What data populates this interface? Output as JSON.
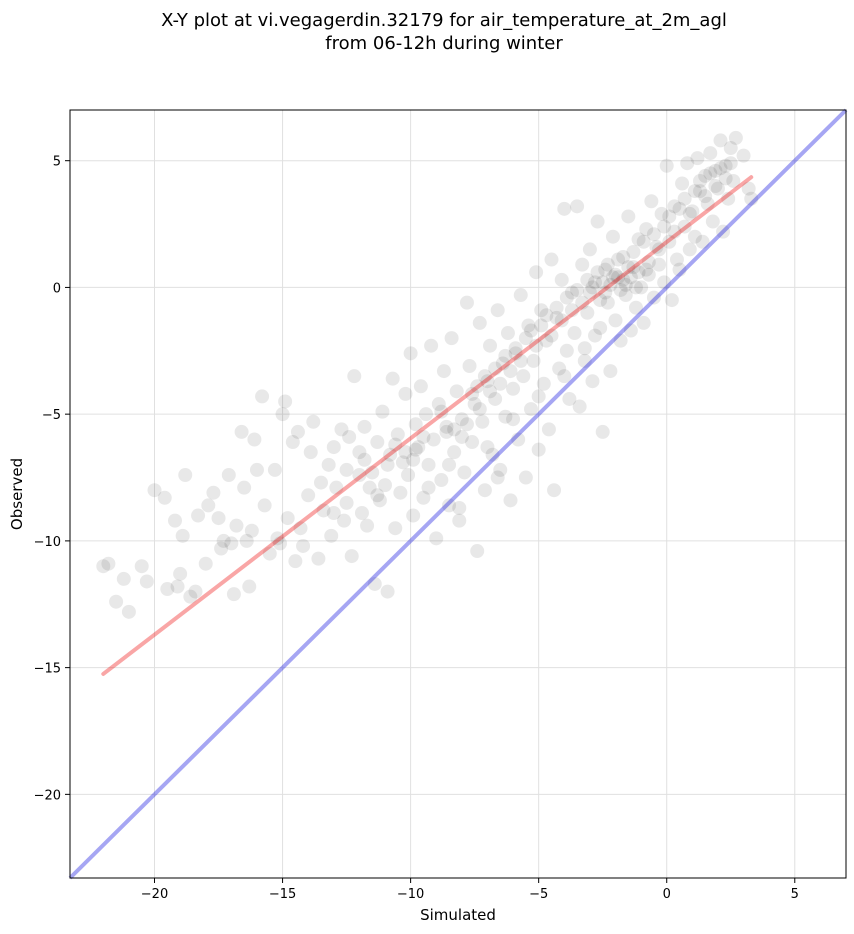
{
  "chart_data": {
    "type": "scatter",
    "title_lines": [
      "X-Y plot at vi.vegagerdin.32179 for air_temperature_at_2m_agl",
      "from 06-12h during winter"
    ],
    "xlabel": "Simulated",
    "ylabel": "Observed",
    "xlim": [
      -23.3,
      7.0
    ],
    "ylim": [
      -23.3,
      7.0
    ],
    "xticks": [
      -20,
      -15,
      -10,
      -5,
      0,
      5
    ],
    "yticks": [
      -20,
      -15,
      -10,
      -5,
      0,
      5
    ],
    "xtick_labels": [
      "−20",
      "−15",
      "−10",
      "−5",
      "0",
      "5"
    ],
    "ytick_labels": [
      "−20",
      "−15",
      "−10",
      "−5",
      "0",
      "5"
    ],
    "grid": true,
    "reference_line": {
      "color": "#0000dd",
      "x": [
        -23.3,
        7.0
      ],
      "y": [
        -23.3,
        7.0
      ]
    },
    "fit_line": {
      "color": "#ee0000",
      "x": [
        -22.0,
        3.3
      ],
      "y": [
        -15.25,
        4.35
      ]
    },
    "point_color": "#000000",
    "points": [
      [
        -22.0,
        -11.0
      ],
      [
        -21.8,
        -10.9
      ],
      [
        -21.5,
        -12.4
      ],
      [
        -21.2,
        -11.5
      ],
      [
        -21.0,
        -12.8
      ],
      [
        -20.5,
        -11.0
      ],
      [
        -20.3,
        -11.6
      ],
      [
        -20.0,
        -8.0
      ],
      [
        -19.6,
        -8.3
      ],
      [
        -19.5,
        -11.9
      ],
      [
        -19.2,
        -9.2
      ],
      [
        -19.1,
        -11.8
      ],
      [
        -18.9,
        -9.8
      ],
      [
        -18.8,
        -7.4
      ],
      [
        -18.6,
        -12.2
      ],
      [
        -18.4,
        -12.0
      ],
      [
        -18.3,
        -9.0
      ],
      [
        -17.9,
        -8.6
      ],
      [
        -17.7,
        -8.1
      ],
      [
        -17.5,
        -9.1
      ],
      [
        -17.4,
        -10.3
      ],
      [
        -17.3,
        -10.0
      ],
      [
        -17.1,
        -7.4
      ],
      [
        -16.9,
        -12.1
      ],
      [
        -16.8,
        -9.4
      ],
      [
        -16.6,
        -5.7
      ],
      [
        -16.5,
        -7.9
      ],
      [
        -16.4,
        -10.0
      ],
      [
        -16.3,
        -11.8
      ],
      [
        -16.1,
        -6.0
      ],
      [
        -16.0,
        -7.2
      ],
      [
        -15.8,
        -4.3
      ],
      [
        -15.7,
        -8.6
      ],
      [
        -15.5,
        -10.5
      ],
      [
        -15.3,
        -7.2
      ],
      [
        -15.1,
        -10.1
      ],
      [
        -15.0,
        -5.0
      ],
      [
        -14.9,
        -4.5
      ],
      [
        -14.8,
        -9.1
      ],
      [
        -14.6,
        -6.1
      ],
      [
        -14.5,
        -10.8
      ],
      [
        -14.4,
        -5.7
      ],
      [
        -14.2,
        -10.2
      ],
      [
        -14.0,
        -8.2
      ],
      [
        -13.9,
        -6.5
      ],
      [
        -13.8,
        -5.3
      ],
      [
        -13.6,
        -10.7
      ],
      [
        -13.4,
        -8.8
      ],
      [
        -13.2,
        -7.0
      ],
      [
        -13.1,
        -9.8
      ],
      [
        -13.0,
        -6.3
      ],
      [
        -12.9,
        -7.9
      ],
      [
        -12.7,
        -5.6
      ],
      [
        -12.6,
        -9.2
      ],
      [
        -12.5,
        -7.2
      ],
      [
        -12.4,
        -5.9
      ],
      [
        -12.3,
        -10.6
      ],
      [
        -12.2,
        -3.5
      ],
      [
        -12.0,
        -6.5
      ],
      [
        -11.9,
        -8.9
      ],
      [
        -11.8,
        -5.5
      ],
      [
        -11.7,
        -9.4
      ],
      [
        -11.5,
        -7.3
      ],
      [
        -11.4,
        -11.7
      ],
      [
        -11.3,
        -6.1
      ],
      [
        -11.2,
        -8.4
      ],
      [
        -11.1,
        -4.9
      ],
      [
        -11.0,
        -7.8
      ],
      [
        -10.9,
        -12.0
      ],
      [
        -10.8,
        -6.6
      ],
      [
        -10.7,
        -3.6
      ],
      [
        -10.6,
        -9.5
      ],
      [
        -10.5,
        -5.8
      ],
      [
        -10.4,
        -8.1
      ],
      [
        -10.3,
        -6.9
      ],
      [
        -10.2,
        -4.2
      ],
      [
        -10.1,
        -7.4
      ],
      [
        -10.0,
        -2.6
      ],
      [
        -9.9,
        -9.0
      ],
      [
        -9.8,
        -5.4
      ],
      [
        -9.7,
        -6.3
      ],
      [
        -9.6,
        -3.9
      ],
      [
        -9.5,
        -8.3
      ],
      [
        -9.4,
        -5.0
      ],
      [
        -9.3,
        -7.0
      ],
      [
        -9.2,
        -2.3
      ],
      [
        -9.1,
        -6.0
      ],
      [
        -9.0,
        -9.9
      ],
      [
        -8.9,
        -4.6
      ],
      [
        -8.8,
        -7.6
      ],
      [
        -8.7,
        -3.3
      ],
      [
        -8.6,
        -5.7
      ],
      [
        -8.5,
        -8.6
      ],
      [
        -8.4,
        -2.0
      ],
      [
        -8.3,
        -6.5
      ],
      [
        -8.2,
        -4.1
      ],
      [
        -8.1,
        -9.2
      ],
      [
        -8.0,
        -5.2
      ],
      [
        -7.9,
        -7.3
      ],
      [
        -7.8,
        -0.6
      ],
      [
        -7.7,
        -3.1
      ],
      [
        -7.6,
        -6.1
      ],
      [
        -7.5,
        -4.6
      ],
      [
        -7.4,
        -10.4
      ],
      [
        -7.3,
        -1.4
      ],
      [
        -7.2,
        -5.3
      ],
      [
        -7.1,
        -8.0
      ],
      [
        -7.0,
        -3.7
      ],
      [
        -6.9,
        -2.3
      ],
      [
        -6.8,
        -6.6
      ],
      [
        -6.7,
        -4.4
      ],
      [
        -6.6,
        -0.9
      ],
      [
        -6.5,
        -7.2
      ],
      [
        -6.4,
        -3.0
      ],
      [
        -6.3,
        -5.1
      ],
      [
        -6.2,
        -1.8
      ],
      [
        -6.1,
        -8.4
      ],
      [
        -6.0,
        -4.0
      ],
      [
        -5.9,
        -2.6
      ],
      [
        -5.8,
        -6.0
      ],
      [
        -5.7,
        -0.3
      ],
      [
        -5.6,
        -3.5
      ],
      [
        -5.5,
        -7.5
      ],
      [
        -5.4,
        -1.5
      ],
      [
        -5.3,
        -4.8
      ],
      [
        -5.2,
        -2.9
      ],
      [
        -5.1,
        0.6
      ],
      [
        -5.0,
        -6.4
      ],
      [
        -4.9,
        -0.9
      ],
      [
        -4.8,
        -3.8
      ],
      [
        -4.7,
        -2.1
      ],
      [
        -4.6,
        -5.6
      ],
      [
        -4.5,
        1.1
      ],
      [
        -4.4,
        -8.0
      ],
      [
        -4.3,
        -1.2
      ],
      [
        -4.2,
        -3.2
      ],
      [
        -4.1,
        0.3
      ],
      [
        -4.0,
        3.1
      ],
      [
        -3.9,
        -2.5
      ],
      [
        -3.8,
        -4.4
      ],
      [
        -3.7,
        -0.2
      ],
      [
        -3.6,
        -1.8
      ],
      [
        -3.5,
        3.2
      ],
      [
        -3.4,
        -4.7
      ],
      [
        -3.3,
        0.9
      ],
      [
        -3.2,
        -2.9
      ],
      [
        -3.1,
        -1.0
      ],
      [
        -3.0,
        1.5
      ],
      [
        -2.9,
        -3.7
      ],
      [
        -2.8,
        0.2
      ],
      [
        -2.7,
        2.6
      ],
      [
        -2.6,
        -1.6
      ],
      [
        -2.5,
        -5.7
      ],
      [
        -2.4,
        0.7
      ],
      [
        -2.3,
        -0.6
      ],
      [
        -2.2,
        -3.3
      ],
      [
        -2.1,
        2.0
      ],
      [
        -2.0,
        -1.3
      ],
      [
        -1.9,
        0.4
      ],
      [
        -1.8,
        -2.1
      ],
      [
        -1.7,
        1.2
      ],
      [
        -1.6,
        -0.3
      ],
      [
        -1.5,
        2.8
      ],
      [
        -1.4,
        -1.7
      ],
      [
        -1.3,
        0.8
      ],
      [
        -1.2,
        -0.8
      ],
      [
        -1.1,
        1.9
      ],
      [
        -1.0,
        0.0
      ],
      [
        -0.9,
        -1.4
      ],
      [
        -0.8,
        2.3
      ],
      [
        -0.7,
        0.5
      ],
      [
        -0.6,
        3.4
      ],
      [
        -0.5,
        -0.4
      ],
      [
        -0.4,
        1.6
      ],
      [
        -0.3,
        0.9
      ],
      [
        -0.2,
        2.9
      ],
      [
        -0.1,
        0.2
      ],
      [
        0.0,
        4.8
      ],
      [
        0.1,
        1.8
      ],
      [
        0.2,
        -0.5
      ],
      [
        0.3,
        3.2
      ],
      [
        0.4,
        1.1
      ],
      [
        0.5,
        0.7
      ],
      [
        0.6,
        4.1
      ],
      [
        0.7,
        2.4
      ],
      [
        0.8,
        4.9
      ],
      [
        0.9,
        1.5
      ],
      [
        1.0,
        3.0
      ],
      [
        1.1,
        2.0
      ],
      [
        1.2,
        5.1
      ],
      [
        1.3,
        3.8
      ],
      [
        1.4,
        1.8
      ],
      [
        1.5,
        4.4
      ],
      [
        1.6,
        3.3
      ],
      [
        1.7,
        5.3
      ],
      [
        1.8,
        2.6
      ],
      [
        1.9,
        4.6
      ],
      [
        2.0,
        3.9
      ],
      [
        2.1,
        5.8
      ],
      [
        2.2,
        2.2
      ],
      [
        2.3,
        4.8
      ],
      [
        2.4,
        3.5
      ],
      [
        2.5,
        5.5
      ],
      [
        2.6,
        4.2
      ],
      [
        2.7,
        5.9
      ],
      [
        3.0,
        5.2
      ],
      [
        3.2,
        3.9
      ],
      [
        3.3,
        3.5
      ],
      [
        -10.6,
        -6.2
      ],
      [
        -10.2,
        -6.5
      ],
      [
        -9.8,
        -6.4
      ],
      [
        -9.5,
        -5.9
      ],
      [
        -9.9,
        -6.8
      ],
      [
        -8.8,
        -4.9
      ],
      [
        -8.6,
        -5.5
      ],
      [
        -8.3,
        -5.6
      ],
      [
        -8.0,
        -5.9
      ],
      [
        -7.8,
        -5.4
      ],
      [
        -7.6,
        -4.2
      ],
      [
        -7.4,
        -3.9
      ],
      [
        -7.3,
        -4.8
      ],
      [
        -7.1,
        -3.5
      ],
      [
        -6.9,
        -4.1
      ],
      [
        -6.7,
        -3.2
      ],
      [
        -6.5,
        -3.8
      ],
      [
        -6.3,
        -2.7
      ],
      [
        -6.1,
        -3.3
      ],
      [
        -5.9,
        -2.4
      ],
      [
        -5.7,
        -2.9
      ],
      [
        -5.5,
        -2.0
      ],
      [
        -5.3,
        -1.7
      ],
      [
        -5.1,
        -2.3
      ],
      [
        -4.9,
        -1.5
      ],
      [
        -4.7,
        -1.1
      ],
      [
        -4.5,
        -1.9
      ],
      [
        -4.3,
        -0.8
      ],
      [
        -4.1,
        -1.3
      ],
      [
        -3.9,
        -0.4
      ],
      [
        -3.7,
        -0.9
      ],
      [
        -3.5,
        -0.1
      ],
      [
        -3.3,
        -0.6
      ],
      [
        -3.1,
        0.3
      ],
      [
        -2.9,
        0.0
      ],
      [
        -2.7,
        0.6
      ],
      [
        -2.5,
        0.2
      ],
      [
        -2.3,
        0.9
      ],
      [
        -2.1,
        0.4
      ],
      [
        -1.9,
        1.1
      ],
      [
        -1.7,
        0.3
      ],
      [
        -1.5,
        0.8
      ],
      [
        -1.3,
        1.4
      ],
      [
        -1.1,
        0.6
      ],
      [
        -0.9,
        1.8
      ],
      [
        -0.7,
        1.0
      ],
      [
        -0.5,
        2.1
      ],
      [
        -0.3,
        1.5
      ],
      [
        -0.1,
        2.4
      ],
      [
        0.1,
        2.8
      ],
      [
        0.3,
        2.2
      ],
      [
        0.5,
        3.1
      ],
      [
        0.7,
        3.5
      ],
      [
        0.9,
        2.9
      ],
      [
        1.1,
        3.8
      ],
      [
        1.3,
        4.2
      ],
      [
        1.5,
        3.6
      ],
      [
        1.7,
        4.5
      ],
      [
        1.9,
        4.0
      ],
      [
        2.1,
        4.7
      ],
      [
        2.3,
        4.3
      ],
      [
        2.5,
        4.9
      ],
      [
        -2.0,
        0.5
      ],
      [
        -2.4,
        -0.2
      ],
      [
        -1.8,
        -0.1
      ],
      [
        -2.2,
        0.1
      ],
      [
        -1.6,
        0.1
      ],
      [
        -2.6,
        -0.5
      ],
      [
        -3.0,
        -0.2
      ],
      [
        -1.4,
        0.4
      ],
      [
        -1.2,
        0.0
      ],
      [
        -0.8,
        0.7
      ],
      [
        -12.0,
        -7.4
      ],
      [
        -11.6,
        -7.9
      ],
      [
        -11.3,
        -8.2
      ],
      [
        -10.9,
        -7.0
      ],
      [
        -12.5,
        -8.5
      ],
      [
        -11.8,
        -6.8
      ],
      [
        -13.5,
        -7.7
      ],
      [
        -13.0,
        -8.9
      ],
      [
        -14.3,
        -9.5
      ],
      [
        -15.2,
        -9.9
      ],
      [
        -16.2,
        -9.6
      ],
      [
        -17.0,
        -10.1
      ],
      [
        -18.0,
        -10.9
      ],
      [
        -19.0,
        -11.3
      ],
      [
        -8.5,
        -7.0
      ],
      [
        -9.3,
        -7.9
      ],
      [
        -7.0,
        -6.3
      ],
      [
        -6.0,
        -5.2
      ],
      [
        -5.0,
        -4.3
      ],
      [
        -4.0,
        -3.5
      ],
      [
        -3.2,
        -2.4
      ],
      [
        -2.8,
        -1.9
      ],
      [
        -6.6,
        -7.5
      ],
      [
        -8.1,
        -8.7
      ]
    ]
  }
}
